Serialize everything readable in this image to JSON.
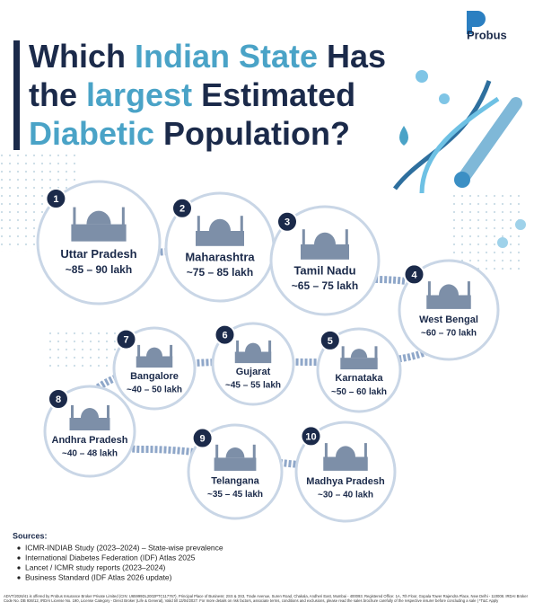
{
  "logo": "Probus",
  "title": [
    [
      {
        "text": "Which ",
        "accent": false
      },
      {
        "text": "Indian State",
        "accent": true
      },
      {
        "text": " Has",
        "accent": false
      }
    ],
    [
      {
        "text": "the ",
        "accent": false
      },
      {
        "text": "largest",
        "accent": true
      },
      {
        "text": " Estimated",
        "accent": false
      }
    ],
    [
      {
        "text": "Diabetic",
        "accent": true
      },
      {
        "text": " Population?",
        "accent": false
      }
    ]
  ],
  "states": [
    {
      "rank": 1,
      "name": "Uttar Pradesh",
      "range": "~85 – 90 lakh"
    },
    {
      "rank": 2,
      "name": "Maharashtra",
      "range": "~75 – 85 lakh"
    },
    {
      "rank": 3,
      "name": "Tamil Nadu",
      "range": "~65 – 75 lakh"
    },
    {
      "rank": 4,
      "name": "West Bengal",
      "range": "~60 – 70 lakh"
    },
    {
      "rank": 5,
      "name": "Karnataka",
      "range": "~50 – 60 lakh"
    },
    {
      "rank": 6,
      "name": "Gujarat",
      "range": "~45 – 55 lakh"
    },
    {
      "rank": 7,
      "name": "Bangalore",
      "range": "~40 – 50 lakh"
    },
    {
      "rank": 8,
      "name": "Andhra Pradesh",
      "range": "~40 – 48 lakh"
    },
    {
      "rank": 9,
      "name": "Telangana",
      "range": "~35 – 45 lakh"
    },
    {
      "rank": 10,
      "name": "Madhya Pradesh",
      "range": "~30 – 40 lakh"
    }
  ],
  "sources": {
    "heading": "Sources:",
    "items": [
      "ICMR-INDIAB Study (2023–2024) – State-wise prevalence",
      "International Diabetes Federation (IDF) Atlas 2025",
      "Lancet / ICMR study reports (2023–2024)",
      "Business Standard (IDF Atlas 2026 update)"
    ]
  },
  "disclaimer": "ADVT/2026/41 is offered by Probus Insurance Broker Private Limited (CIN: U65999DL2002PTC117767). Principal Place of Business: 2SS & 3S3, Trade Avenue, Suren Road, Chakala, Andheri East, Mumbai - 400093. Registered Office: 1A, 7th Floor, Gopala Tower Rajendra Place, New Delhi - 110008. IRDAI Broker Code No. DB 936/12, IRDAI License No. 190, License Category - Direct Broker (Life & General), Valid till 13/04/2027. For more details on risk factors, associate terms, conditions and exclusions, please read the sales brochure carefully of the respective insurer before concluding a sale | *T&C Apply"
}
